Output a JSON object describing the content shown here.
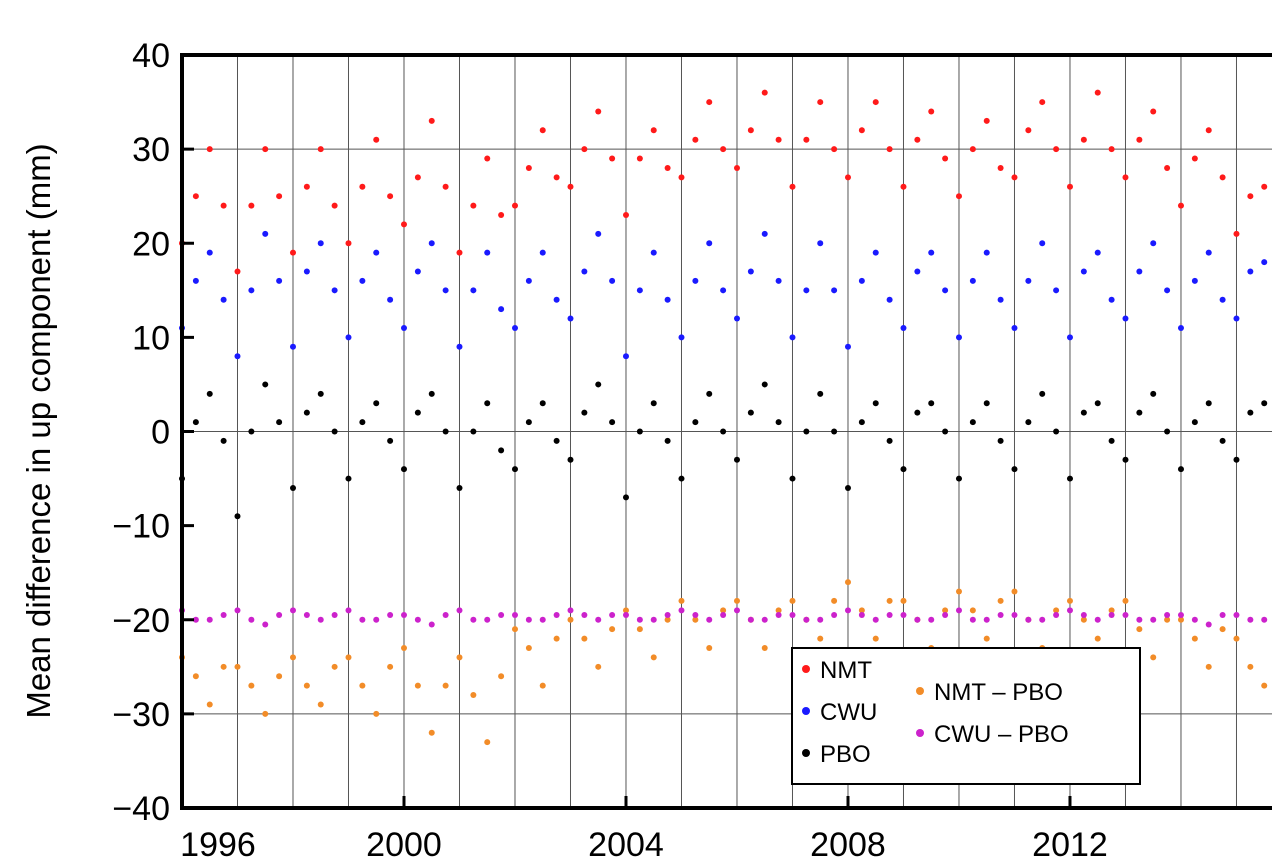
{
  "chart_data": {
    "type": "scatter",
    "ylabel": "Mean difference in up component (mm)",
    "x": [
      1996.0,
      1996.25,
      1996.5,
      1996.75,
      1997.0,
      1997.25,
      1997.5,
      1997.75,
      1998.0,
      1998.25,
      1998.5,
      1998.75,
      1999.0,
      1999.25,
      1999.5,
      1999.75,
      2000.0,
      2000.25,
      2000.5,
      2000.75,
      2001.0,
      2001.25,
      2001.5,
      2001.75,
      2002.0,
      2002.25,
      2002.5,
      2002.75,
      2003.0,
      2003.25,
      2003.5,
      2003.75,
      2004.0,
      2004.25,
      2004.5,
      2004.75,
      2005.0,
      2005.25,
      2005.5,
      2005.75,
      2006.0,
      2006.25,
      2006.5,
      2006.75,
      2007.0,
      2007.25,
      2007.5,
      2007.75,
      2008.0,
      2008.25,
      2008.5,
      2008.75,
      2009.0,
      2009.25,
      2009.5,
      2009.75,
      2010.0,
      2010.25,
      2010.5,
      2010.75,
      2011.0,
      2011.25,
      2011.5,
      2011.75,
      2012.0,
      2012.25,
      2012.5,
      2012.75,
      2013.0,
      2013.25,
      2013.5,
      2013.75,
      2014.0,
      2014.25,
      2014.5,
      2014.75,
      2015.0,
      2015.25,
      2015.5
    ],
    "series": [
      {
        "name": "NMT",
        "color": "#ff1a1a",
        "values": [
          20,
          25,
          30,
          24,
          17,
          24,
          30,
          25,
          19,
          26,
          30,
          24,
          20,
          26,
          31,
          25,
          22,
          27,
          33,
          26,
          19,
          24,
          29,
          23,
          24,
          28,
          32,
          27,
          26,
          30,
          34,
          29,
          23,
          29,
          32,
          28,
          27,
          31,
          35,
          30,
          28,
          32,
          36,
          31,
          26,
          31,
          35,
          30,
          27,
          32,
          35,
          30,
          26,
          31,
          34,
          29,
          25,
          30,
          33,
          28,
          27,
          32,
          35,
          30,
          26,
          31,
          36,
          30,
          27,
          31,
          34,
          28,
          24,
          29,
          32,
          27,
          21,
          25,
          26
        ]
      },
      {
        "name": "CWU",
        "color": "#1a1aff",
        "values": [
          11,
          16,
          19,
          14,
          8,
          15,
          21,
          16,
          9,
          17,
          20,
          15,
          10,
          16,
          19,
          14,
          11,
          17,
          20,
          15,
          9,
          15,
          19,
          13,
          11,
          16,
          19,
          14,
          12,
          17,
          21,
          16,
          8,
          15,
          19,
          14,
          10,
          16,
          20,
          15,
          12,
          17,
          21,
          16,
          10,
          15,
          20,
          15,
          9,
          16,
          19,
          14,
          11,
          17,
          19,
          15,
          10,
          16,
          19,
          14,
          11,
          16,
          20,
          15,
          10,
          17,
          19,
          14,
          12,
          17,
          20,
          15,
          11,
          16,
          19,
          14,
          12,
          17,
          18
        ]
      },
      {
        "name": "PBO",
        "color": "#000000",
        "values": [
          -5,
          1,
          4,
          -1,
          -9,
          0,
          5,
          1,
          -6,
          2,
          4,
          0,
          -5,
          1,
          3,
          -1,
          -4,
          2,
          4,
          0,
          -6,
          0,
          3,
          -2,
          -4,
          1,
          3,
          -1,
          -3,
          2,
          5,
          1,
          -7,
          0,
          3,
          -1,
          -5,
          1,
          4,
          0,
          -3,
          2,
          5,
          1,
          -5,
          0,
          4,
          0,
          -6,
          1,
          3,
          -1,
          -4,
          2,
          3,
          0,
          -5,
          1,
          3,
          -1,
          -4,
          1,
          4,
          0,
          -5,
          2,
          3,
          -1,
          -3,
          2,
          4,
          0,
          -4,
          1,
          3,
          -1,
          -3,
          2,
          3
        ]
      },
      {
        "name": "NMT – PBO",
        "color": "#f28c28",
        "values": [
          -24,
          -26,
          -29,
          -25,
          -25,
          -27,
          -30,
          -26,
          -24,
          -27,
          -29,
          -25,
          -24,
          -27,
          -30,
          -25,
          -23,
          -27,
          -32,
          -27,
          -24,
          -28,
          -33,
          -26,
          -21,
          -23,
          -27,
          -22,
          -20,
          -22,
          -25,
          -21,
          -19,
          -21,
          -24,
          -20,
          -18,
          -20,
          -23,
          -19,
          -18,
          -20,
          -23,
          -19,
          -18,
          -20,
          -22,
          -18,
          -16,
          -19,
          -22,
          -18,
          -18,
          -20,
          -23,
          -19,
          -17,
          -19,
          -22,
          -18,
          -17,
          -20,
          -23,
          -19,
          -18,
          -20,
          -22,
          -19,
          -18,
          -21,
          -24,
          -20,
          -20,
          -22,
          -25,
          -21,
          -22,
          -25,
          -27
        ]
      },
      {
        "name": "CWU – PBO",
        "color": "#cc22cc",
        "values": [
          -19,
          -20,
          -20,
          -19.5,
          -19,
          -20,
          -20.5,
          -19.5,
          -19,
          -19.5,
          -20,
          -19.5,
          -19,
          -20,
          -20,
          -19.5,
          -19.5,
          -20,
          -20.5,
          -19.5,
          -19,
          -20,
          -20,
          -19.5,
          -19.5,
          -20,
          -20,
          -19.5,
          -19,
          -19.5,
          -20,
          -19.5,
          -19.5,
          -20,
          -20,
          -19.5,
          -19,
          -19.5,
          -20,
          -19.5,
          -19,
          -20,
          -20,
          -19.5,
          -19.5,
          -20,
          -20,
          -19.5,
          -19,
          -19.5,
          -20,
          -19.5,
          -19.5,
          -20,
          -20,
          -19.5,
          -19,
          -20,
          -20,
          -19.5,
          -19.5,
          -20,
          -20,
          -19.5,
          -19,
          -19.5,
          -20,
          -19.5,
          -19.5,
          -20,
          -20,
          -19.5,
          -19.5,
          -20,
          -20.5,
          -19.5,
          -19.5,
          -20,
          -20
        ]
      }
    ],
    "xlim": [
      1996,
      2015.64
    ],
    "ylim": [
      -40,
      40
    ],
    "xticks": [
      1996,
      2000,
      2004,
      2008,
      2012
    ],
    "x_grid_lines": [
      1997,
      1998,
      1999,
      2000,
      2001,
      2002,
      2003,
      2004,
      2005,
      2006,
      2007,
      2008,
      2009,
      2010,
      2011,
      2012,
      2013,
      2014,
      2015
    ],
    "yticks": [
      {
        "value": -40,
        "label": "−40"
      },
      {
        "value": -30,
        "label": "−30"
      },
      {
        "value": -20,
        "label": "−20"
      },
      {
        "value": -10,
        "label": "−10"
      },
      0,
      10,
      20,
      30,
      40
    ],
    "y_grid_lines": [
      -30,
      0,
      30
    ],
    "legend": "lower right"
  }
}
